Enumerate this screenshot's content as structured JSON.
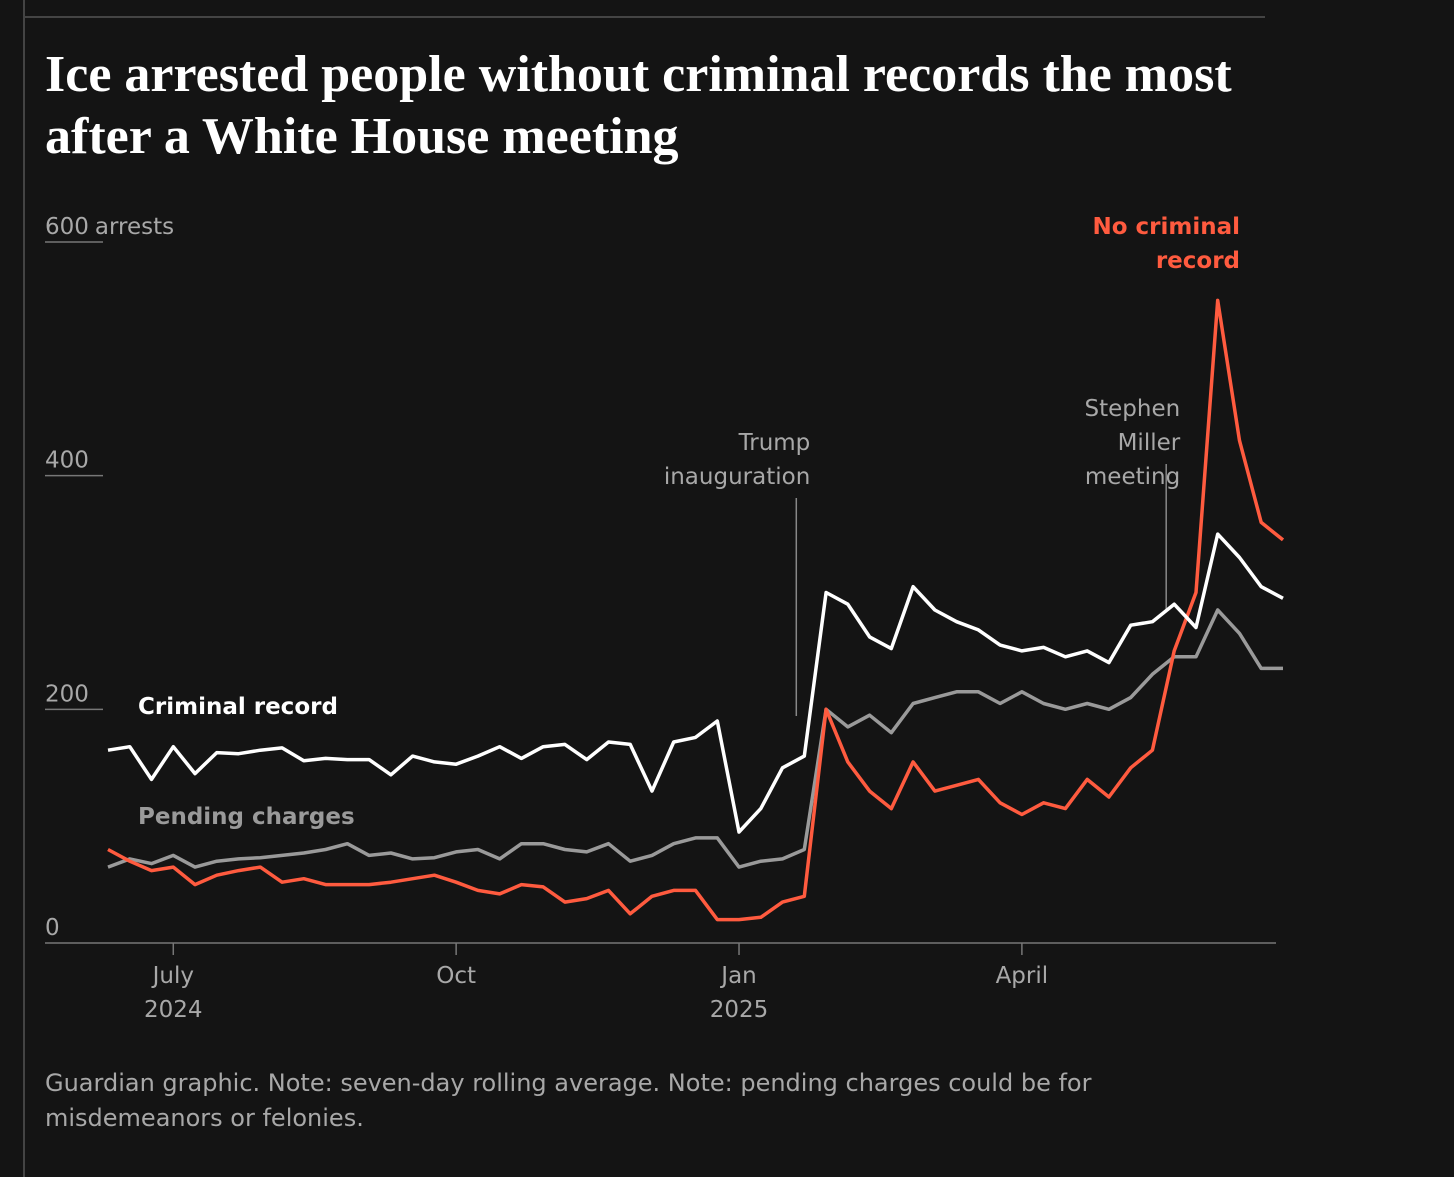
{
  "chart_data": {
    "type": "line",
    "title": "Ice arrested people without criminal records the most after a White House meeting",
    "y_label": "arrests",
    "note": "Guardian graphic. Note: seven-day rolling average. Note: pending charges could be for misdemeanors or felonies.",
    "categories": [
      null,
      null,
      null,
      "July 2024",
      null,
      null,
      null,
      null,
      null,
      null,
      null,
      null,
      null,
      null,
      null,
      null,
      "Oct",
      null,
      null,
      null,
      null,
      null,
      null,
      null,
      null,
      null,
      null,
      null,
      null,
      "Jan 2025",
      null,
      null,
      null,
      null,
      null,
      null,
      null,
      null,
      null,
      null,
      null,
      null,
      "April",
      null,
      null,
      null,
      null,
      null,
      null,
      null,
      null,
      null,
      null,
      null,
      null
    ],
    "ylim": [
      0,
      600
    ],
    "yticks": [
      0,
      200,
      400,
      600
    ],
    "series": [
      {
        "name": "Pending charges",
        "color": "#9a9a9a",
        "values": [
          65,
          72,
          68,
          75,
          65,
          70,
          72,
          73,
          75,
          77,
          80,
          85,
          75,
          77,
          72,
          73,
          78,
          80,
          72,
          85,
          85,
          80,
          78,
          85,
          70,
          75,
          85,
          90,
          90,
          65,
          70,
          72,
          80,
          200,
          185,
          195,
          180,
          205,
          210,
          215,
          215,
          205,
          215,
          205,
          200,
          205,
          200,
          210,
          230,
          245,
          245,
          285,
          265,
          235,
          235
        ]
      },
      {
        "name": "No criminal record",
        "color": "#ff5b3f",
        "values": [
          80,
          70,
          62,
          65,
          50,
          58,
          62,
          65,
          52,
          55,
          50,
          50,
          50,
          52,
          55,
          58,
          52,
          45,
          42,
          50,
          48,
          35,
          38,
          45,
          25,
          40,
          45,
          45,
          20,
          20,
          22,
          35,
          40,
          200,
          155,
          130,
          115,
          155,
          130,
          135,
          140,
          120,
          110,
          120,
          115,
          140,
          125,
          150,
          165,
          250,
          300,
          550,
          430,
          360,
          345
        ]
      },
      {
        "name": "Criminal record",
        "color": "#ffffff",
        "values": [
          165,
          168,
          140,
          168,
          145,
          163,
          162,
          165,
          167,
          156,
          158,
          157,
          157,
          144,
          160,
          155,
          153,
          160,
          168,
          158,
          168,
          170,
          157,
          172,
          170,
          130,
          172,
          176,
          190,
          95,
          115,
          150,
          160,
          300,
          290,
          262,
          252,
          305,
          285,
          275,
          268,
          255,
          250,
          253,
          245,
          250,
          240,
          272,
          275,
          290,
          270,
          350,
          330,
          305,
          295
        ]
      }
    ],
    "annotations": [
      "Trump inauguration",
      "Stephen Miller meeting"
    ]
  }
}
